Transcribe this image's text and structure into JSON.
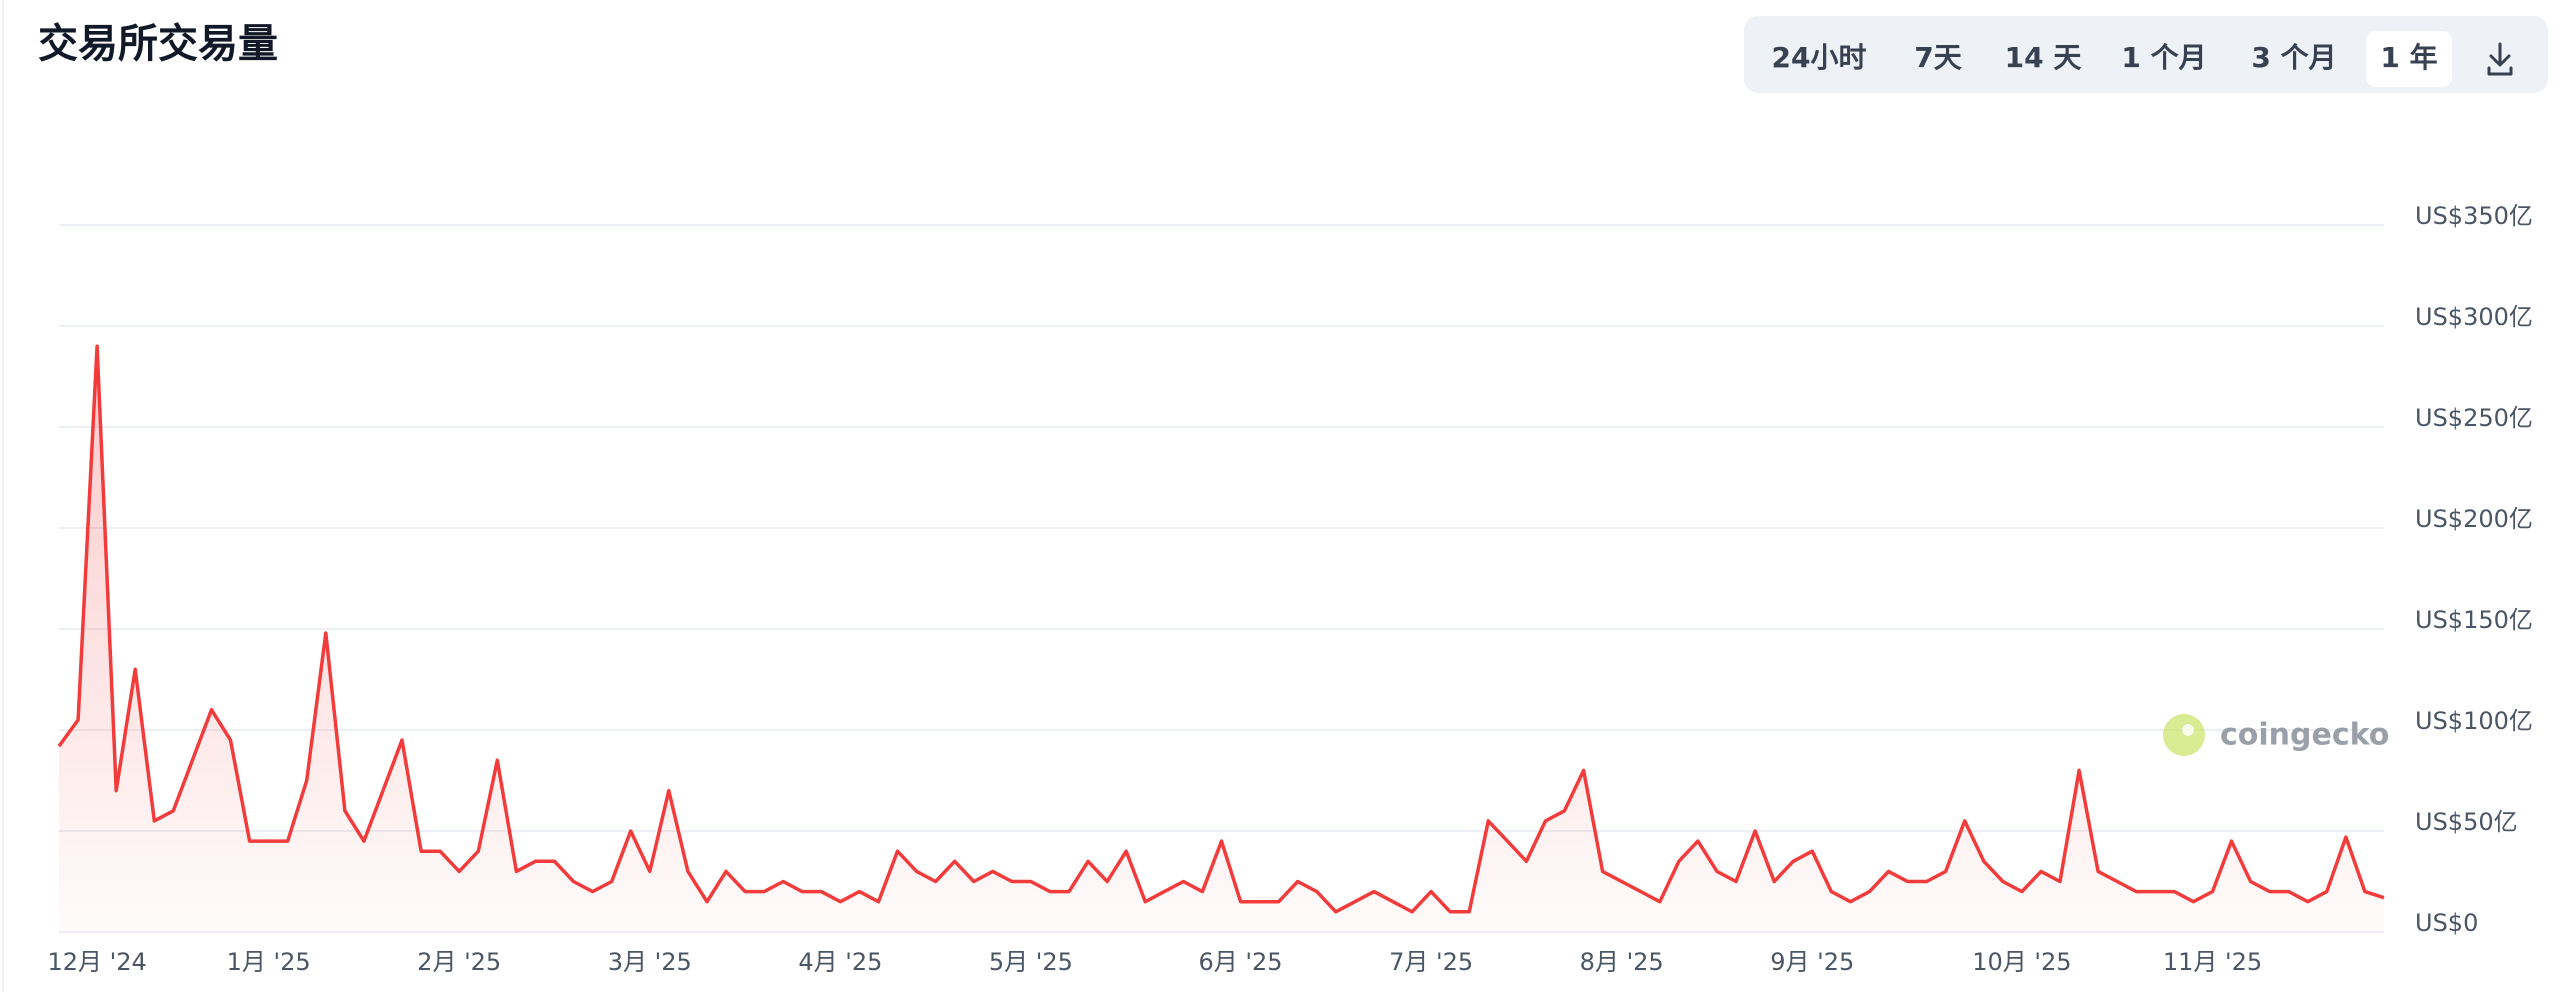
{
  "chart_data": {
    "type": "line",
    "title": "交易所交易量",
    "ranges": [
      "24小时",
      "7天",
      "14 天",
      "1 个月",
      "3 个月",
      "1 年"
    ],
    "active_range": 5,
    "watermark": "coingecko",
    "categories": [
      null,
      null,
      "12月 '24",
      null,
      null,
      null,
      null,
      null,
      null,
      null,
      null,
      "1月 '25",
      null,
      null,
      null,
      null,
      null,
      null,
      null,
      null,
      null,
      "2月 '25",
      null,
      null,
      null,
      null,
      null,
      null,
      null,
      null,
      null,
      "3月 '25",
      null,
      null,
      null,
      null,
      null,
      null,
      null,
      null,
      null,
      "4月 '25",
      null,
      null,
      null,
      null,
      null,
      null,
      null,
      null,
      null,
      "5月 '25",
      null,
      null,
      null,
      null,
      null,
      null,
      null,
      null,
      null,
      null,
      "6月 '25",
      null,
      null,
      null,
      null,
      null,
      null,
      null,
      null,
      null,
      "7月 '25",
      null,
      null,
      null,
      null,
      null,
      null,
      null,
      null,
      null,
      "8月 '25",
      null,
      null,
      null,
      null,
      null,
      null,
      null,
      null,
      null,
      "9月 '25",
      null,
      null,
      null,
      null,
      null,
      null,
      null,
      null,
      null,
      null,
      "10月 '25",
      null,
      null,
      null,
      null,
      null,
      null,
      null,
      null,
      null,
      "11月 '25",
      null,
      null,
      null,
      null,
      null,
      null,
      null,
      null,
      null
    ],
    "series": [
      {
        "color": "#f23c3c",
        "values": [
          92,
          105,
          290,
          70,
          130,
          55,
          60,
          85,
          110,
          95,
          45,
          45,
          45,
          75,
          148,
          60,
          45,
          70,
          95,
          40,
          40,
          30,
          40,
          85,
          30,
          35,
          35,
          25,
          20,
          25,
          50,
          30,
          70,
          30,
          15,
          30,
          20,
          20,
          25,
          20,
          20,
          15,
          20,
          15,
          40,
          30,
          25,
          35,
          25,
          30,
          25,
          25,
          20,
          20,
          35,
          25,
          40,
          15,
          20,
          25,
          20,
          45,
          15,
          15,
          15,
          25,
          20,
          10,
          15,
          20,
          15,
          10,
          20,
          10,
          10,
          55,
          45,
          35,
          55,
          60,
          80,
          30,
          25,
          20,
          15,
          35,
          45,
          30,
          25,
          50,
          25,
          35,
          40,
          20,
          15,
          20,
          30,
          25,
          25,
          30,
          55,
          35,
          25,
          20,
          30,
          25,
          80,
          30,
          25,
          20,
          20,
          20,
          15,
          20,
          45,
          25,
          20,
          20,
          15,
          20,
          47,
          20,
          17
        ]
      }
    ],
    "ylim": [
      0,
      350
    ],
    "yticks": [
      {
        "value": 0,
        "label": "US$0"
      },
      {
        "value": 50,
        "label": "US$50亿"
      },
      {
        "value": 100,
        "label": "US$100亿"
      },
      {
        "value": 150,
        "label": "US$150亿"
      },
      {
        "value": 200,
        "label": "US$200亿"
      },
      {
        "value": 250,
        "label": "US$250亿"
      },
      {
        "value": 300,
        "label": "US$300亿"
      },
      {
        "value": 350,
        "label": "US$350亿"
      }
    ],
    "grid": true
  }
}
